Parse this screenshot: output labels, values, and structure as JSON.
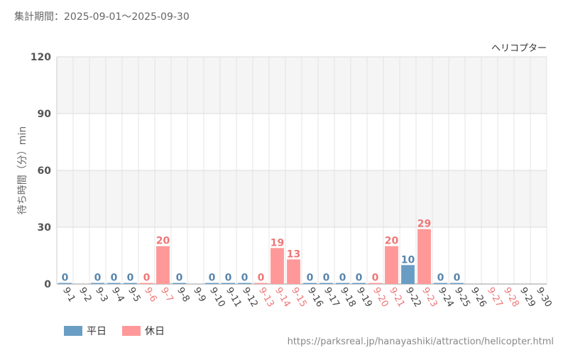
{
  "header": {
    "period_label": "集計期間：2025-09-01～2025-09-30"
  },
  "legend": {
    "items": [
      {
        "label": "平日",
        "color": "#6a9dc4"
      },
      {
        "label": "休日",
        "color": "#ff9999"
      }
    ]
  },
  "source_url": "https://parksreal.jp/hanayashiki/attraction/helicopter.html",
  "chart_data": {
    "type": "bar",
    "title": "ヘリコプター",
    "ylabel": "待ち時間（分）min",
    "xlabel": "",
    "ylim": [
      0,
      120
    ],
    "yticks": [
      0,
      30,
      60,
      90,
      120
    ],
    "grid": true,
    "categories": [
      "9-1",
      "9-2",
      "9-3",
      "9-4",
      "9-5",
      "9-6",
      "9-7",
      "9-8",
      "9-9",
      "9-10",
      "9-11",
      "9-12",
      "9-13",
      "9-14",
      "9-15",
      "9-16",
      "9-17",
      "9-18",
      "9-19",
      "9-20",
      "9-21",
      "9-22",
      "9-23",
      "9-24",
      "9-25",
      "9-26",
      "9-27",
      "9-28",
      "9-29",
      "9-30"
    ],
    "values": [
      0,
      null,
      0,
      0,
      0,
      0,
      20,
      0,
      null,
      0,
      0,
      0,
      0,
      19,
      13,
      0,
      0,
      0,
      0,
      0,
      20,
      10,
      29,
      0,
      0,
      null,
      null,
      null,
      null,
      null
    ],
    "day_type": [
      "weekday",
      "weekday",
      "weekday",
      "weekday",
      "weekday",
      "holiday",
      "holiday",
      "weekday",
      "weekday",
      "weekday",
      "weekday",
      "weekday",
      "holiday",
      "holiday",
      "holiday",
      "weekday",
      "weekday",
      "weekday",
      "weekday",
      "holiday",
      "holiday",
      "weekday",
      "holiday",
      "weekday",
      "weekday",
      "weekday",
      "holiday",
      "holiday",
      "weekday",
      "weekday"
    ],
    "colors": {
      "weekday": "#6a9dc4",
      "holiday": "#ff9999",
      "weekday_text": "#5a86ad",
      "holiday_text": "#ee7777"
    }
  }
}
